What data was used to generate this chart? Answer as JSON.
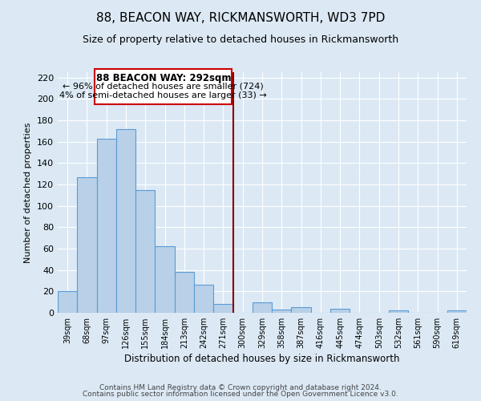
{
  "title": "88, BEACON WAY, RICKMANSWORTH, WD3 7PD",
  "subtitle": "Size of property relative to detached houses in Rickmansworth",
  "xlabel": "Distribution of detached houses by size in Rickmansworth",
  "ylabel": "Number of detached properties",
  "bin_labels": [
    "39sqm",
    "68sqm",
    "97sqm",
    "126sqm",
    "155sqm",
    "184sqm",
    "213sqm",
    "242sqm",
    "271sqm",
    "300sqm",
    "329sqm",
    "358sqm",
    "387sqm",
    "416sqm",
    "445sqm",
    "474sqm",
    "503sqm",
    "532sqm",
    "561sqm",
    "590sqm",
    "619sqm"
  ],
  "bar_heights": [
    20,
    127,
    163,
    172,
    115,
    62,
    38,
    26,
    8,
    0,
    10,
    3,
    5,
    0,
    4,
    0,
    0,
    2,
    0,
    0,
    2
  ],
  "bar_color": "#b8d0e8",
  "bar_edge_color": "#5b9bd5",
  "vline_color": "#8b0000",
  "annotation_title": "88 BEACON WAY: 292sqm",
  "annotation_line1": "← 96% of detached houses are smaller (724)",
  "annotation_line2": "4% of semi-detached houses are larger (33) →",
  "annotation_box_color": "#ffffff",
  "annotation_box_edge": "#cc0000",
  "ylim": [
    0,
    225
  ],
  "yticks": [
    0,
    20,
    40,
    60,
    80,
    100,
    120,
    140,
    160,
    180,
    200,
    220
  ],
  "footer_line1": "Contains HM Land Registry data © Crown copyright and database right 2024.",
  "footer_line2": "Contains public sector information licensed under the Open Government Licence v3.0.",
  "bg_color": "#dce9f5",
  "plot_bg_color": "#dce9f5",
  "grid_color": "#ffffff",
  "title_fontsize": 11,
  "subtitle_fontsize": 9,
  "annotation_fontsize": 8.5,
  "footer_fontsize": 6.5
}
